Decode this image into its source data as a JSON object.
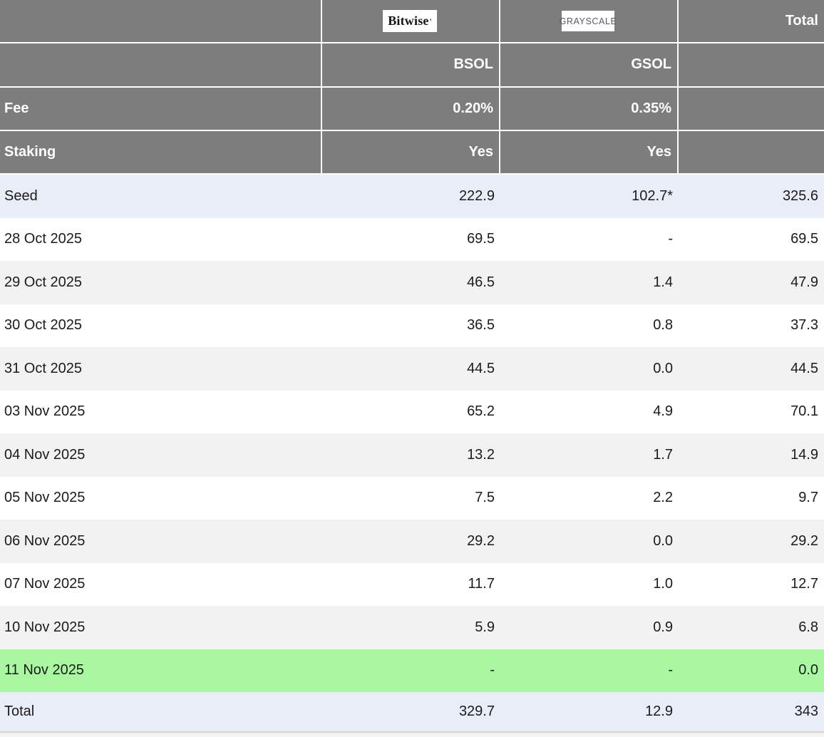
{
  "colors": {
    "header_bg": "#7d7d7d",
    "highlight_row_bg": "#e8edf8",
    "alt_row_bg": "#f2f2f2",
    "green_row_bg": "#a9f7a1",
    "header_text": "#ffffff",
    "body_text": "#1b1b1b",
    "grayscale_logo_text": "#565b61"
  },
  "header": {
    "bitwise_logo_text": "Bitwise",
    "bitwise_logo_mark": "’",
    "grayscale_logo_text": "GRAYSCALE",
    "total_label": "Total",
    "bsol_ticker": "BSOL",
    "gsol_ticker": "GSOL",
    "fee_label": "Fee",
    "fee_bsol": "0.20%",
    "fee_gsol": "0.35%",
    "staking_label": "Staking",
    "staking_bsol": "Yes",
    "staking_gsol": "Yes"
  },
  "chart_data": {
    "type": "table",
    "title": "",
    "columns": [
      "",
      "BSOL",
      "GSOL",
      "Total"
    ],
    "issuers": [
      "Bitwise",
      "Grayscale"
    ],
    "fees": [
      "0.20%",
      "0.35%"
    ],
    "staking": [
      "Yes",
      "Yes"
    ],
    "rows": [
      {
        "label": "Seed",
        "bsol": "222.9",
        "gsol": "102.7*",
        "total": "325.6",
        "bg": "highlight"
      },
      {
        "label": "28 Oct 2025",
        "bsol": "69.5",
        "gsol": "-",
        "total": "69.5",
        "bg": "white"
      },
      {
        "label": "29 Oct 2025",
        "bsol": "46.5",
        "gsol": "1.4",
        "total": "47.9",
        "bg": "alt"
      },
      {
        "label": "30 Oct 2025",
        "bsol": "36.5",
        "gsol": "0.8",
        "total": "37.3",
        "bg": "white"
      },
      {
        "label": "31 Oct 2025",
        "bsol": "44.5",
        "gsol": "0.0",
        "total": "44.5",
        "bg": "alt"
      },
      {
        "label": "03 Nov 2025",
        "bsol": "65.2",
        "gsol": "4.9",
        "total": "70.1",
        "bg": "white"
      },
      {
        "label": "04 Nov 2025",
        "bsol": "13.2",
        "gsol": "1.7",
        "total": "14.9",
        "bg": "alt"
      },
      {
        "label": "05 Nov 2025",
        "bsol": "7.5",
        "gsol": "2.2",
        "total": "9.7",
        "bg": "white"
      },
      {
        "label": "06 Nov 2025",
        "bsol": "29.2",
        "gsol": "0.0",
        "total": "29.2",
        "bg": "alt"
      },
      {
        "label": "07 Nov 2025",
        "bsol": "11.7",
        "gsol": "1.0",
        "total": "12.7",
        "bg": "white"
      },
      {
        "label": "10 Nov 2025",
        "bsol": "5.9",
        "gsol": "0.9",
        "total": "6.8",
        "bg": "alt"
      },
      {
        "label": "11 Nov 2025",
        "bsol": "-",
        "gsol": "-",
        "total": "0.0",
        "bg": "green"
      },
      {
        "label": "Total",
        "bsol": "329.7",
        "gsol": "12.9",
        "total": "343",
        "bg": "highlight"
      }
    ]
  }
}
